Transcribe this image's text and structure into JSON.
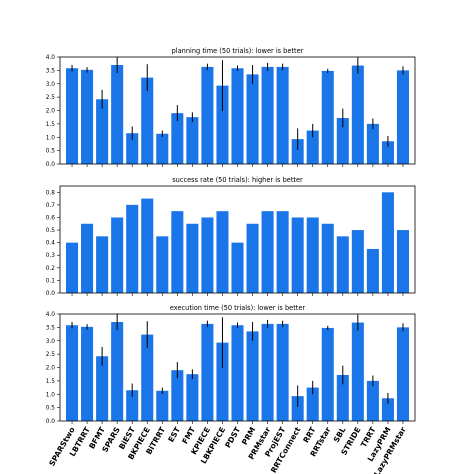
{
  "chart_data": [
    {
      "type": "bar",
      "title": "planning time (50 trials): lower is better",
      "categories": [
        "SPARStwo",
        "LBTRRT",
        "BFMT",
        "SPARS",
        "BiEST",
        "BKPIECE",
        "BiTRRT",
        "EST",
        "FMT",
        "KPIECE",
        "LBKPIECE",
        "PDST",
        "PRM",
        "PRMstar",
        "ProjEST",
        "RRTConnect",
        "RRT",
        "RRTstar",
        "SBL",
        "STRIDE",
        "TRRT",
        "LazyPRM",
        "LazyPRMstar"
      ],
      "values": [
        3.58,
        3.52,
        2.42,
        3.7,
        1.15,
        3.23,
        1.13,
        1.9,
        1.75,
        3.63,
        2.93,
        3.58,
        3.35,
        3.63,
        3.63,
        0.93,
        1.25,
        3.48,
        1.72,
        3.68,
        1.5,
        0.85,
        3.5
      ],
      "errors": [
        0.12,
        0.1,
        0.35,
        0.3,
        0.25,
        0.5,
        0.12,
        0.3,
        0.18,
        0.12,
        0.95,
        0.1,
        0.35,
        0.15,
        0.12,
        0.4,
        0.25,
        0.08,
        0.35,
        0.3,
        0.2,
        0.2,
        0.15
      ],
      "ylim": [
        0,
        4.0
      ],
      "yticks": [
        "0.0",
        "0.5",
        "1.0",
        "1.5",
        "2.0",
        "2.5",
        "3.0",
        "3.5",
        "4.0"
      ],
      "ytick_values": [
        0,
        0.5,
        1.0,
        1.5,
        2.0,
        2.5,
        3.0,
        3.5,
        4.0
      ],
      "xlabel": "",
      "ylabel": "",
      "show_xticklabels": false,
      "bar_color": "#1a75e8"
    },
    {
      "type": "bar",
      "title": "success rate (50 trials): higher is better",
      "categories": [
        "SPARStwo",
        "LBTRRT",
        "BFMT",
        "SPARS",
        "BiEST",
        "BKPIECE",
        "BiTRRT",
        "EST",
        "FMT",
        "KPIECE",
        "LBKPIECE",
        "PDST",
        "PRM",
        "PRMstar",
        "ProjEST",
        "RRTConnect",
        "RRT",
        "RRTstar",
        "SBL",
        "STRIDE",
        "TRRT",
        "LazyPRM",
        "LazyPRMstar"
      ],
      "values": [
        0.4,
        0.55,
        0.45,
        0.6,
        0.7,
        0.75,
        0.45,
        0.65,
        0.55,
        0.6,
        0.65,
        0.4,
        0.55,
        0.65,
        0.65,
        0.6,
        0.6,
        0.55,
        0.45,
        0.5,
        0.35,
        0.8,
        0.5
      ],
      "ylim": [
        0,
        0.85
      ],
      "yticks": [
        "0.0",
        "0.1",
        "0.2",
        "0.3",
        "0.4",
        "0.5",
        "0.6",
        "0.7",
        "0.8"
      ],
      "ytick_values": [
        0,
        0.1,
        0.2,
        0.3,
        0.4,
        0.5,
        0.6,
        0.7,
        0.8
      ],
      "xlabel": "",
      "ylabel": "",
      "show_xticklabels": false,
      "bar_color": "#1a75e8"
    },
    {
      "type": "bar",
      "title": "execution time (50 trials): lower is better",
      "categories": [
        "SPARStwo",
        "LBTRRT",
        "BFMT",
        "SPARS",
        "BiEST",
        "BKPIECE",
        "BiTRRT",
        "EST",
        "FMT",
        "KPIECE",
        "LBKPIECE",
        "PDST",
        "PRM",
        "PRMstar",
        "ProjEST",
        "RRTConnect",
        "RRT",
        "RRTstar",
        "SBL",
        "STRIDE",
        "TRRT",
        "LazyPRM",
        "LazyPRMstar"
      ],
      "values": [
        3.58,
        3.52,
        2.42,
        3.7,
        1.15,
        3.23,
        1.13,
        1.9,
        1.75,
        3.63,
        2.93,
        3.58,
        3.35,
        3.63,
        3.63,
        0.93,
        1.25,
        3.48,
        1.72,
        3.68,
        1.5,
        0.85,
        3.5
      ],
      "errors": [
        0.12,
        0.1,
        0.35,
        0.3,
        0.25,
        0.5,
        0.12,
        0.3,
        0.18,
        0.12,
        0.95,
        0.1,
        0.35,
        0.15,
        0.12,
        0.4,
        0.25,
        0.08,
        0.35,
        0.3,
        0.2,
        0.2,
        0.15
      ],
      "ylim": [
        0,
        4.0
      ],
      "yticks": [
        "0.0",
        "0.5",
        "1.0",
        "1.5",
        "2.0",
        "2.5",
        "3.0",
        "3.5",
        "4.0"
      ],
      "ytick_values": [
        0,
        0.5,
        1.0,
        1.5,
        2.0,
        2.5,
        3.0,
        3.5,
        4.0
      ],
      "xlabel": "",
      "ylabel": "",
      "show_xticklabels": true,
      "bar_color": "#1a75e8"
    }
  ]
}
